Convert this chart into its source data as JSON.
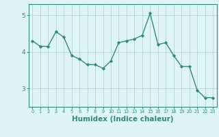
{
  "x": [
    0,
    1,
    2,
    3,
    4,
    5,
    6,
    7,
    8,
    9,
    10,
    11,
    12,
    13,
    14,
    15,
    16,
    17,
    18,
    19,
    20,
    21,
    22,
    23
  ],
  "y": [
    4.3,
    4.15,
    4.15,
    4.55,
    4.4,
    3.9,
    3.8,
    3.65,
    3.65,
    3.55,
    3.75,
    4.25,
    4.3,
    4.35,
    4.45,
    5.05,
    4.2,
    4.25,
    3.9,
    3.6,
    3.6,
    2.95,
    2.75,
    2.75
  ],
  "line_color": "#2e8b7a",
  "marker": "D",
  "markersize": 2.2,
  "linewidth": 1.0,
  "xlabel": "Humidex (Indice chaleur)",
  "xlabel_fontsize": 7.5,
  "ylim": [
    2.5,
    5.3
  ],
  "xlim": [
    -0.5,
    23.5
  ],
  "yticks": [
    3,
    4,
    5
  ],
  "xticks": [
    0,
    1,
    2,
    3,
    4,
    5,
    6,
    7,
    8,
    9,
    10,
    11,
    12,
    13,
    14,
    15,
    16,
    17,
    18,
    19,
    20,
    21,
    22,
    23
  ],
  "bg_color": "#dff4f4",
  "grid_color": "#b8d8d8",
  "tick_color": "#2e8b7a",
  "label_color": "#2e8b7a",
  "spine_color": "#2e8b7a"
}
